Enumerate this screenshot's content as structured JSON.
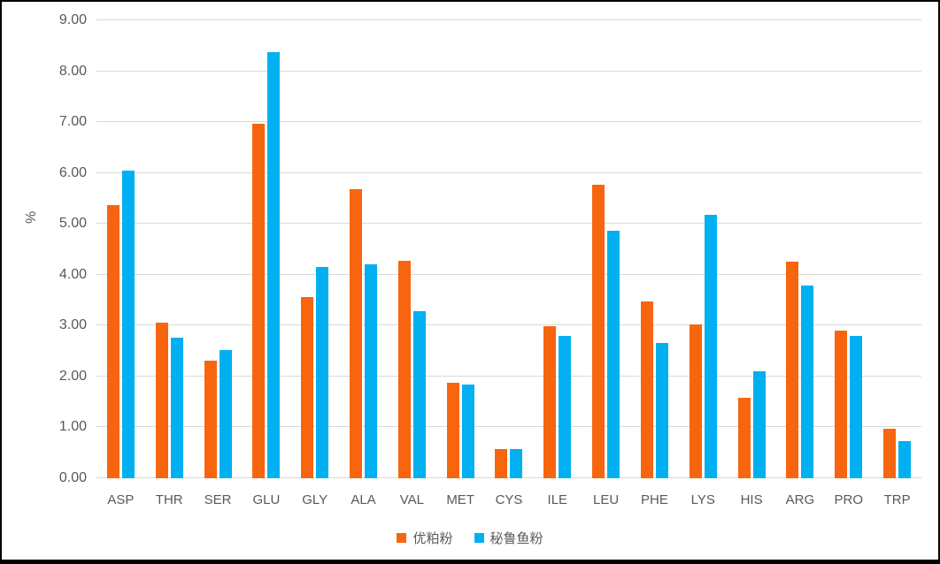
{
  "colors": {
    "series_orange": "#F7650F",
    "series_blue": "#00B0F0",
    "gridline": "#D9D9D9",
    "axis_text": "#595959",
    "frame_border": "#000000",
    "background": "#FFFFFF"
  },
  "chart_data": {
    "type": "bar",
    "title": "",
    "xlabel": "",
    "ylabel": "%",
    "ylim": [
      0,
      9
    ],
    "ytick_step": 1,
    "ytick_labels": [
      "0.00",
      "1.00",
      "2.00",
      "3.00",
      "4.00",
      "5.00",
      "6.00",
      "7.00",
      "8.00",
      "9.00"
    ],
    "grid": true,
    "legend_position": "bottom",
    "categories": [
      "ASP",
      "THR",
      "SER",
      "GLU",
      "GLY",
      "ALA",
      "VAL",
      "MET",
      "CYS",
      "ILE",
      "LEU",
      "PHE",
      "LYS",
      "HIS",
      "ARG",
      "PRO",
      "TRP"
    ],
    "series": [
      {
        "name": "优粕粉",
        "color": "#F7650F",
        "values": [
          5.37,
          3.05,
          2.31,
          6.97,
          3.56,
          5.69,
          4.28,
          1.87,
          0.57,
          2.99,
          5.76,
          3.47,
          3.02,
          1.59,
          4.26,
          2.91,
          0.97
        ]
      },
      {
        "name": "秘鲁鱼粉",
        "color": "#00B0F0",
        "values": [
          6.04,
          2.76,
          2.52,
          8.38,
          4.16,
          4.21,
          3.28,
          1.85,
          0.57,
          2.8,
          4.86,
          2.66,
          5.18,
          2.11,
          3.79,
          2.8,
          0.73
        ]
      }
    ]
  }
}
